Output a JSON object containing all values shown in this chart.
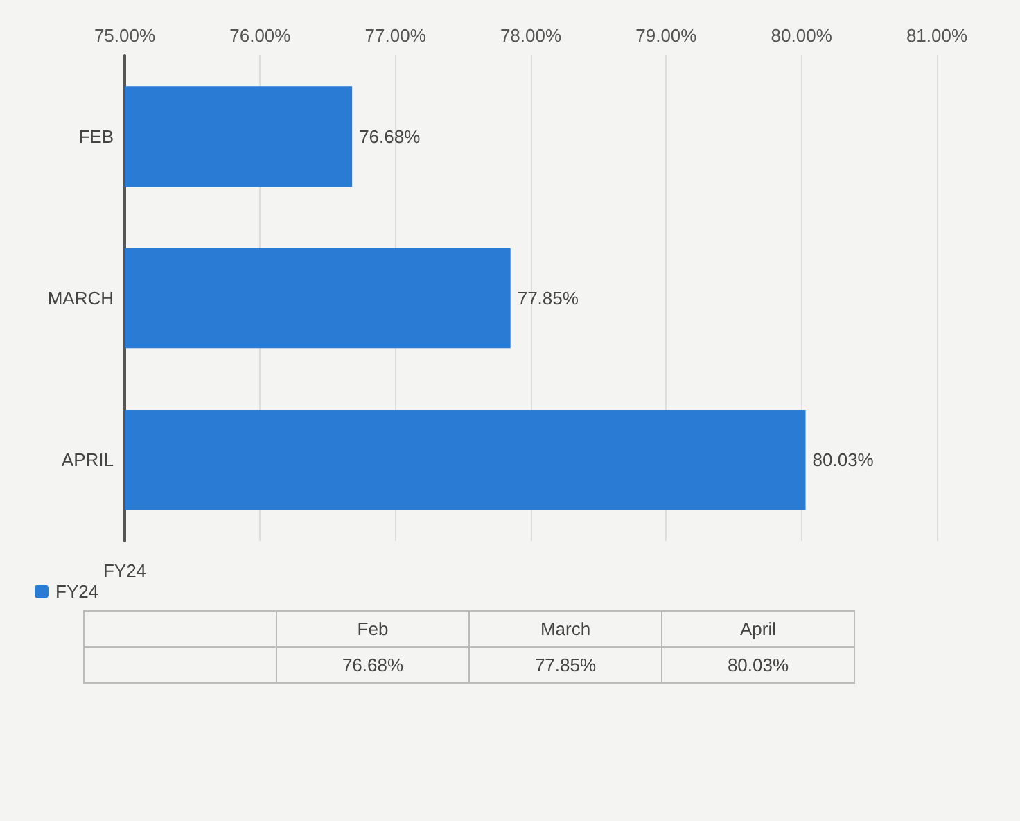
{
  "chart_data": {
    "type": "bar",
    "orientation": "horizontal",
    "categories": [
      "FEB",
      "MARCH",
      "APRIL"
    ],
    "series": [
      {
        "name": "FY24",
        "color": "#2a7bd4",
        "values": [
          76.68,
          77.85,
          80.03
        ],
        "value_labels": [
          "76.68%",
          "77.85%",
          "80.03%"
        ]
      }
    ],
    "ylabel": "FY24",
    "xlim": [
      75,
      81
    ],
    "xticks": [
      {
        "value": 75,
        "label": "75.00%"
      },
      {
        "value": 76,
        "label": "76.00%"
      },
      {
        "value": 77,
        "label": "77.00%"
      },
      {
        "value": 78,
        "label": "78.00%"
      },
      {
        "value": 79,
        "label": "79.00%"
      },
      {
        "value": 80,
        "label": "80.00%"
      },
      {
        "value": 81,
        "label": "81.00%"
      }
    ],
    "grid": "x",
    "legend": "bottom",
    "annotations": [
      "Feb",
      "March",
      "April"
    ]
  }
}
